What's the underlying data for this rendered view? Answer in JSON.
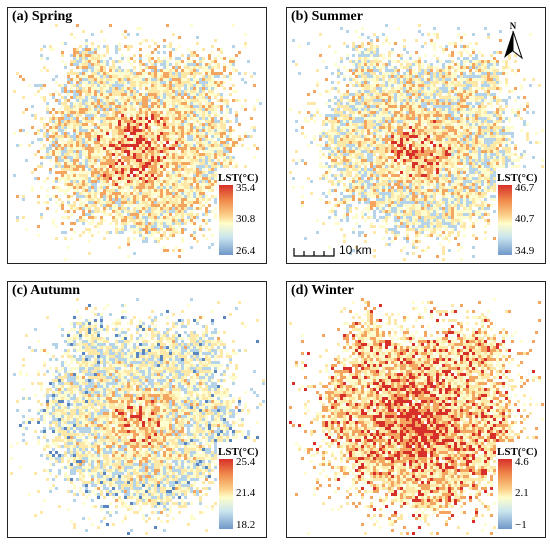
{
  "legend_title": "LST(°C)",
  "north_arrow_icon": "north-arrow-icon",
  "scale_bar_label": "10 km",
  "colors": {
    "hot": "#d7302a",
    "warm": "#f4a55f",
    "mild": "#fee8a8",
    "neutral": "#fdfdd0",
    "cool": "#b5d3e9",
    "cold": "#5a86c0"
  },
  "panels": [
    {
      "title": "(a) Spring",
      "legend": {
        "max": "35.4",
        "mid": "30.8",
        "min": "26.4"
      },
      "bias": 0.05
    },
    {
      "title": "(b) Summer",
      "legend": {
        "max": "46.7",
        "mid": "40.7",
        "min": "34.9"
      },
      "bias": 0.0
    },
    {
      "title": "(c) Autumn",
      "legend": {
        "max": "25.4",
        "mid": "21.4",
        "min": "18.2"
      },
      "bias": -0.05
    },
    {
      "title": "(d) Winter",
      "legend": {
        "max": "4.6",
        "mid": "2.1",
        "min": "−1"
      },
      "bias": 0.18
    }
  ]
}
